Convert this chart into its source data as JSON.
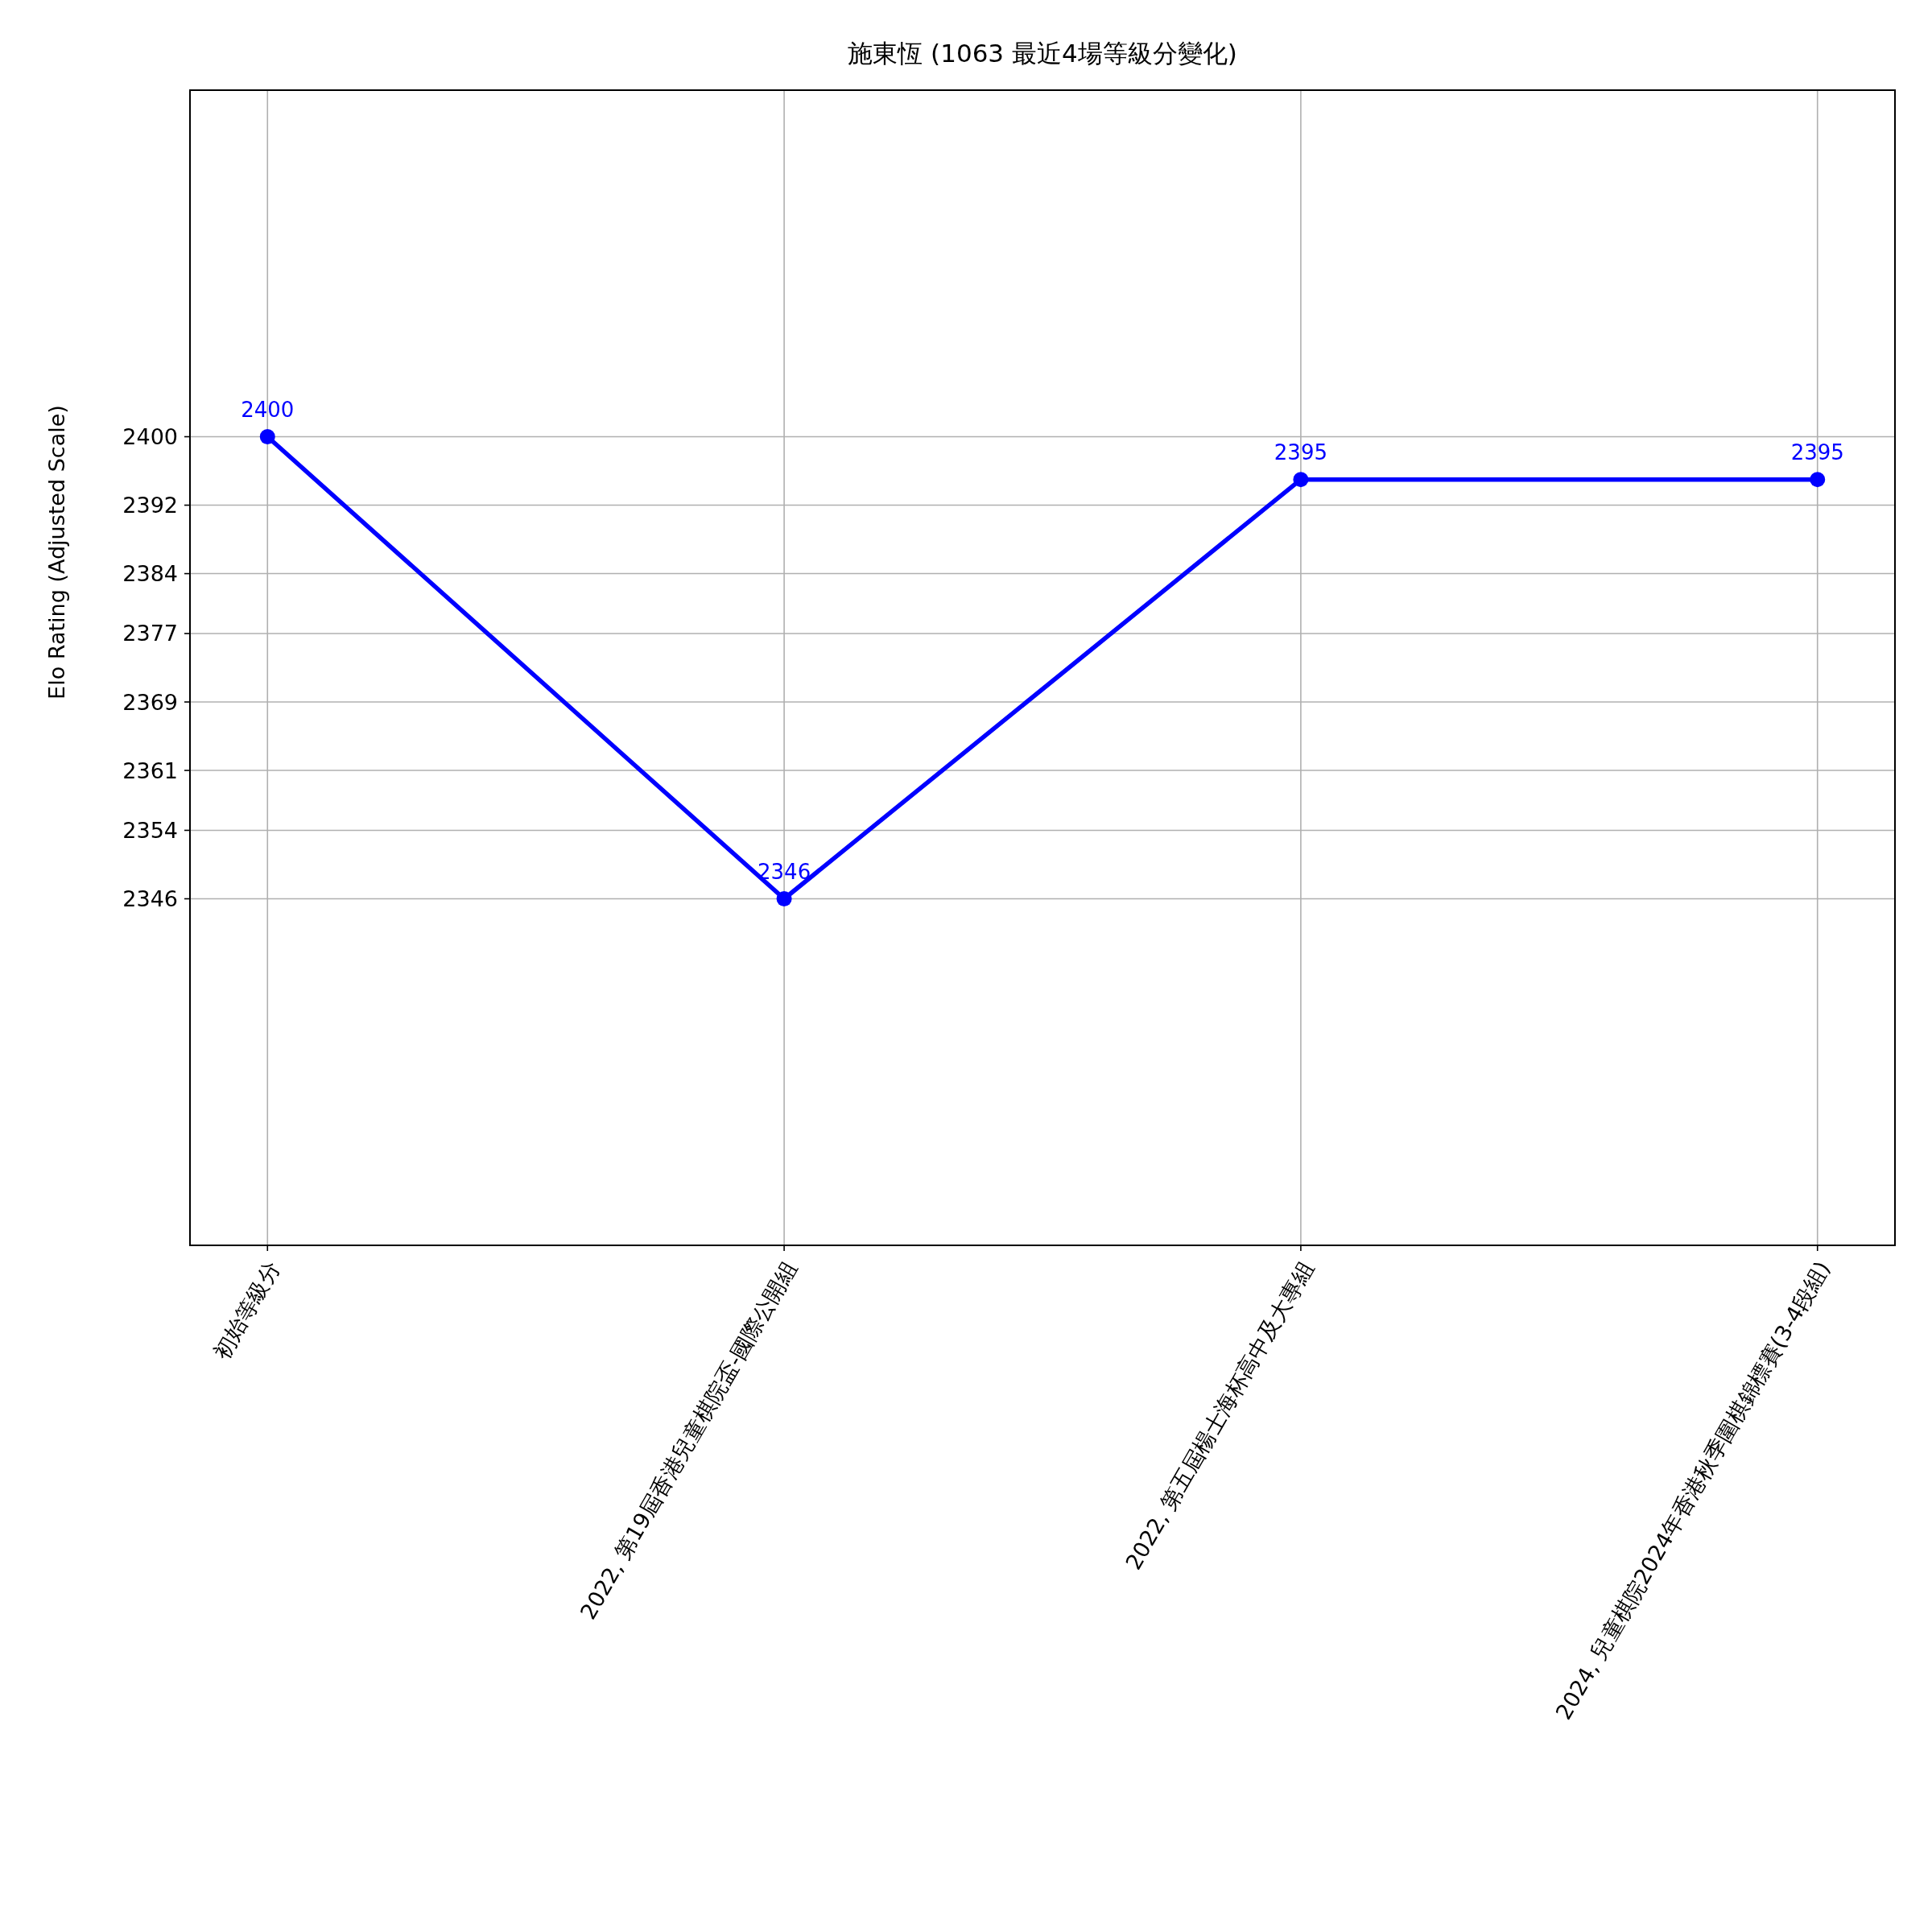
{
  "chart_data": {
    "type": "line",
    "title": "施東恆 (1063 最近4場等級分變化)",
    "ylabel": "Elo Rating (Adjusted Scale)",
    "categories": [
      "初始等級分",
      "2022, 第19屆香港兒童棋院盃-國際公開組",
      "2022, 第五屆楊士海杯高中及大專組",
      "2024, 兒童棋院2024年香港秋季圍棋錦標賽(3-4段組)"
    ],
    "series": [
      {
        "color": "#0000ff",
        "values": [
          2400,
          2346,
          2395,
          2395
        ]
      }
    ],
    "ylim": [
      2305.5,
      2440.5
    ],
    "yticks": [
      2346,
      2354,
      2361,
      2369,
      2377,
      2384,
      2392,
      2400
    ],
    "grid": true,
    "marker": "circle",
    "line_style": "solid",
    "data_labels": true
  }
}
